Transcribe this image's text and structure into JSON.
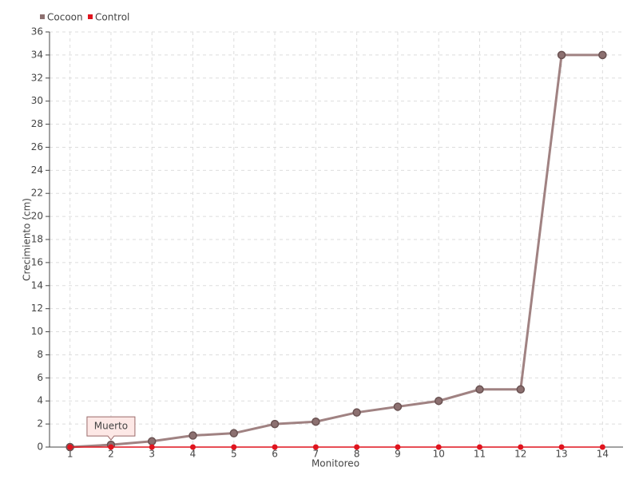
{
  "chart_data": {
    "type": "line",
    "categories": [
      "1",
      "2",
      "3",
      "4",
      "5",
      "6",
      "7",
      "8",
      "9",
      "10",
      "11",
      "12",
      "13",
      "14"
    ],
    "series": [
      {
        "name": "Cocoon",
        "color": "#a08282",
        "values": [
          0,
          0.2,
          0.5,
          1,
          1.2,
          2,
          2.2,
          3,
          3.5,
          4,
          5,
          5,
          34,
          34
        ]
      },
      {
        "name": "Control",
        "color": "#e0141e",
        "values": [
          0,
          0,
          0,
          0,
          0,
          0,
          0,
          0,
          0,
          0,
          0,
          0,
          0,
          0
        ]
      }
    ],
    "ylim": [
      0,
      36
    ],
    "yticks": [
      0,
      2,
      4,
      6,
      8,
      10,
      12,
      14,
      16,
      18,
      20,
      22,
      24,
      26,
      28,
      30,
      32,
      34,
      36
    ],
    "ylabel": "Crecimiento (cm)",
    "xlabel": "Monitoreo",
    "annotation": "Muerto",
    "grid": true,
    "legend": "top-left"
  }
}
